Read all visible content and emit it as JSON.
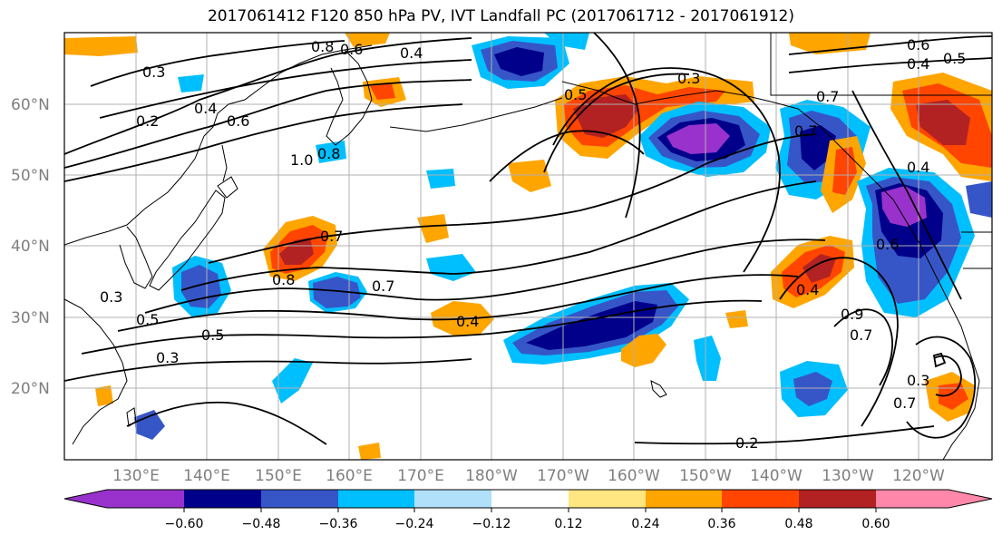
{
  "title": "2017061412 F120 850 hPa PV, IVT Landfall PC (2017061712 - 2017061912)",
  "latitude_labels": [
    "60°N",
    "50°N",
    "40°N",
    "30°N",
    "20°N"
  ],
  "longitude_labels": [
    "130°E",
    "140°E",
    "150°E",
    "160°E",
    "170°E",
    "180°W",
    "170°W",
    "160°W",
    "150°W",
    "140°W",
    "130°W",
    "120°W"
  ],
  "contour_labels": [
    "0.3",
    "0.2",
    "0.4",
    "0.6",
    "0.8",
    "1.0",
    "0.6",
    "0.8",
    "0.4",
    "0.5",
    "0.3",
    "0.7",
    "0.8",
    "0.7",
    "0.4",
    "0.5",
    "0.5",
    "0.3",
    "0.3",
    "0.6",
    "0.4",
    "0.7",
    "0.9",
    "0.7",
    "0.3",
    "0.7",
    "0.2",
    "0.4",
    "0.6",
    "0.5",
    "0.7",
    "0.4"
  ],
  "colorbar": {
    "colors": [
      "#9932cc",
      "#00008b",
      "#3656c8",
      "#00bfff",
      "#b0e0fa",
      "#ffffff",
      "#ffe680",
      "#ffa500",
      "#ff4500",
      "#b22222",
      "#ff88aa"
    ],
    "tick_labels": [
      "−0.60",
      "−0.48",
      "−0.36",
      "−0.24",
      "−0.12",
      "0.12",
      "0.24",
      "0.36",
      "0.48",
      "0.60"
    ]
  },
  "colors": {
    "gridline": "#b0b0b0",
    "contour": "#000000",
    "tick_text": "#7f7f7f"
  }
}
